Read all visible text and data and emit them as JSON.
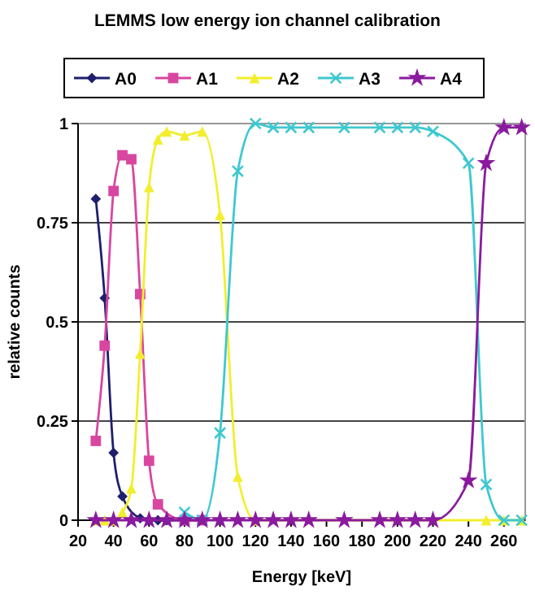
{
  "chart_data": {
    "type": "line",
    "title": "LEMMS low energy ion channel calibration",
    "xlabel": "Energy [keV]",
    "ylabel": "relative counts",
    "xlim": [
      20,
      272
    ],
    "xticks": [
      20,
      40,
      60,
      80,
      100,
      120,
      140,
      160,
      180,
      200,
      220,
      240,
      260
    ],
    "ylim": [
      0,
      1
    ],
    "yticks": [
      0,
      0.25,
      0.5,
      0.75,
      1
    ],
    "grid": "y",
    "legend": "top",
    "series": [
      {
        "name": "A0",
        "color": "#1f1f6e",
        "marker": "diamond",
        "x": [
          30,
          35,
          40,
          45,
          50,
          55,
          60,
          65,
          70,
          80,
          90
        ],
        "values": [
          0.81,
          0.56,
          0.17,
          0.06,
          null,
          0.005,
          0,
          0,
          0,
          0,
          0
        ]
      },
      {
        "name": "A1",
        "color": "#d946a0",
        "marker": "square",
        "x": [
          30,
          35,
          40,
          45,
          50,
          55,
          60,
          65,
          70,
          80,
          90
        ],
        "values": [
          0.2,
          0.44,
          0.83,
          0.92,
          0.91,
          0.57,
          0.15,
          0.04,
          null,
          0,
          0
        ]
      },
      {
        "name": "A2",
        "color": "#f2ee2e",
        "marker": "triangle",
        "x": [
          30,
          35,
          40,
          45,
          50,
          55,
          60,
          65,
          70,
          80,
          90,
          100,
          110,
          120,
          250,
          260,
          270
        ],
        "values": [
          0,
          0,
          0,
          0.02,
          0.08,
          0.42,
          0.84,
          0.96,
          0.98,
          0.97,
          0.98,
          0.77,
          0.11,
          0,
          0,
          0,
          0
        ]
      },
      {
        "name": "A3",
        "color": "#3ec8d0",
        "marker": "cross",
        "x": [
          80,
          90,
          100,
          110,
          120,
          130,
          140,
          150,
          170,
          190,
          200,
          210,
          220,
          240,
          250,
          260,
          270
        ],
        "values": [
          0.02,
          0,
          0.22,
          0.88,
          1,
          0.99,
          0.99,
          0.99,
          0.99,
          0.99,
          0.99,
          0.99,
          0.98,
          0.9,
          0.09,
          0,
          0
        ]
      },
      {
        "name": "A4",
        "color": "#8a1a9e",
        "marker": "star",
        "x": [
          30,
          40,
          50,
          60,
          70,
          80,
          90,
          100,
          110,
          120,
          130,
          140,
          150,
          170,
          190,
          200,
          210,
          220,
          240,
          250,
          260,
          270
        ],
        "values": [
          0,
          0,
          0,
          0,
          0,
          0,
          0,
          0,
          0,
          0,
          0,
          0,
          0,
          0,
          0,
          0,
          0,
          0,
          0.1,
          0.9,
          0.99,
          0.99
        ]
      }
    ]
  }
}
